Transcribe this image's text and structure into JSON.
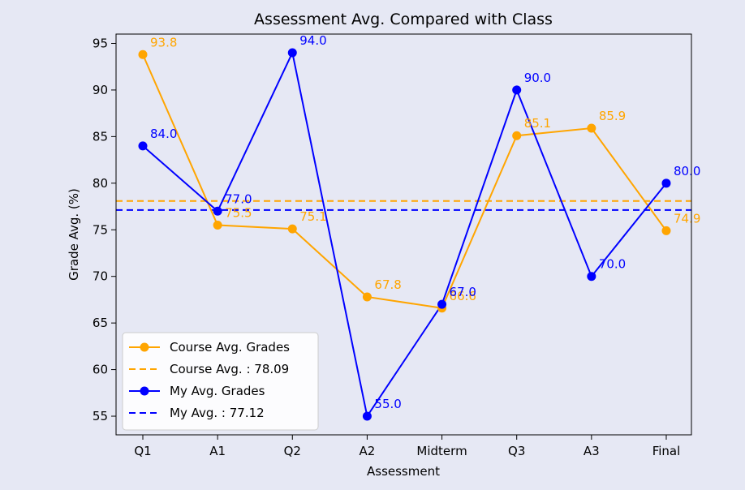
{
  "chart_data": {
    "type": "line",
    "title": "Assessment Avg. Compared with Class",
    "xlabel": "Assessment",
    "ylabel": "Grade Avg. (%)",
    "categories": [
      "Q1",
      "A1",
      "Q2",
      "A2",
      "Midterm",
      "Q3",
      "A3",
      "Final"
    ],
    "ylim": [
      53,
      96
    ],
    "yticks": [
      55,
      60,
      65,
      70,
      75,
      80,
      85,
      90,
      95
    ],
    "grid": false,
    "legend_position": "lower-left",
    "series": [
      {
        "name": "Course Avg. Grades",
        "color": "#FFA500",
        "values": [
          93.8,
          75.5,
          75.1,
          67.8,
          66.6,
          85.1,
          85.9,
          74.9
        ],
        "labels": [
          "93.8",
          "75.5",
          "75.1",
          "67.8",
          "66.6",
          "85.1",
          "85.9",
          "74.9"
        ]
      },
      {
        "name": "My Avg. Grades",
        "color": "#0000FF",
        "values": [
          84.0,
          77.0,
          94.0,
          55.0,
          67.0,
          90.0,
          70.0,
          80.0
        ],
        "labels": [
          "84.0",
          "77.0",
          "94.0",
          "55.0",
          "67.0",
          "90.0",
          "70.0",
          "80.0"
        ]
      }
    ],
    "reference_lines": [
      {
        "name": "Course Avg. : 78.09",
        "value": 78.09,
        "color": "#FFA500",
        "style": "dashed"
      },
      {
        "name": "My Avg. : 77.12",
        "value": 77.12,
        "color": "#0000FF",
        "style": "dashed"
      }
    ],
    "legend": [
      {
        "label": "Course Avg. Grades",
        "color": "#FFA500",
        "kind": "line-marker"
      },
      {
        "label": "Course Avg. : 78.09",
        "color": "#FFA500",
        "kind": "dashed"
      },
      {
        "label": "My Avg. Grades",
        "color": "#0000FF",
        "kind": "line-marker"
      },
      {
        "label": "My Avg. : 77.12",
        "color": "#0000FF",
        "kind": "dashed"
      }
    ],
    "colors": {
      "background": "#E6E8F4",
      "plot_background": "#E6E8F4",
      "axis": "#000000"
    }
  }
}
